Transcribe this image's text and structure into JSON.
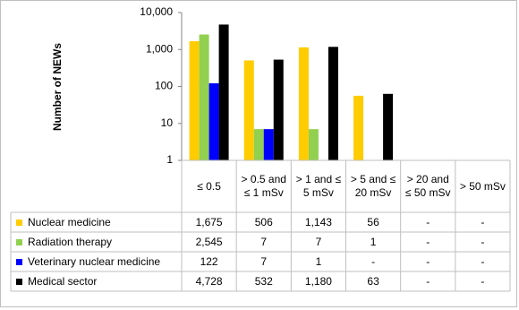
{
  "chart_data": {
    "type": "bar",
    "y_label": "Number of NEWs",
    "log_scale": true,
    "categories": [
      "≤ 0.5",
      "> 0.5 and ≤ 1 mSv",
      "> 1 and ≤ 5 mSv",
      "> 5 and ≤ 20 mSv",
      "> 20 and ≤ 50 mSv",
      "> 50 mSv"
    ],
    "series": [
      {
        "name": "Nuclear medicine",
        "color": "#ffcc00",
        "values": [
          1675,
          506,
          1143,
          56,
          null,
          null
        ],
        "value_labels": [
          "1,675",
          "506",
          "1,143",
          "56",
          "-",
          "-"
        ]
      },
      {
        "name": "Radiation therapy",
        "color": "#92d050",
        "values": [
          2545,
          7,
          7,
          1,
          null,
          null
        ],
        "value_labels": [
          "2,545",
          "7",
          "7",
          "1",
          "-",
          "-"
        ]
      },
      {
        "name": "Veterinary nuclear medicine",
        "color": "#0000ff",
        "values": [
          122,
          7,
          1,
          null,
          null,
          null
        ],
        "value_labels": [
          "122",
          "7",
          "1",
          "-",
          "-",
          "-"
        ]
      },
      {
        "name": "Medical sector",
        "color": "#000000",
        "values": [
          4728,
          532,
          1180,
          63,
          null,
          null
        ],
        "value_labels": [
          "4,728",
          "532",
          "1,180",
          "63",
          "-",
          "-"
        ]
      }
    ],
    "ylim": [
      1,
      10000
    ],
    "yticks": [
      1,
      10,
      100,
      {
        "value": 1000,
        "label": "1,000"
      },
      {
        "value": 10000,
        "label": "10,000"
      }
    ]
  }
}
